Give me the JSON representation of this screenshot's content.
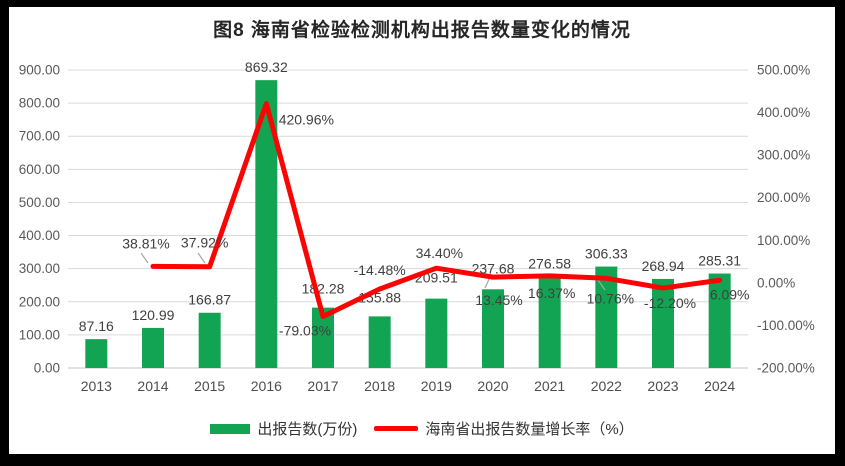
{
  "title": "图8 海南省检验检测机构出报告数量变化的情况",
  "legend": [
    {
      "type": "bar",
      "label": "出报告数(万份)",
      "color": "#12A452"
    },
    {
      "type": "line",
      "label": "海南省出报告数量增长率（%）",
      "color": "#FB0404"
    }
  ],
  "colors": {
    "bar": "#12A452",
    "line": "#FB0404",
    "grid": "#D9D9D9",
    "axis_line": "#C6C6C6",
    "tick_text": "#595959",
    "label_text": "#404040",
    "leader": "#A6A6A6"
  },
  "chart_data": {
    "type": "combo-bar-line",
    "title": "图8 海南省检验检测机构出报告数量变化的情况",
    "categories": [
      "2013",
      "2014",
      "2015",
      "2016",
      "2017",
      "2018",
      "2019",
      "2020",
      "2021",
      "2022",
      "2023",
      "2024"
    ],
    "series": [
      {
        "name": "出报告数(万份)",
        "type": "bar",
        "axis": "left",
        "color": "#12A452",
        "values": [
          87.16,
          120.99,
          166.87,
          869.32,
          182.28,
          155.88,
          209.51,
          237.68,
          276.58,
          306.33,
          268.94,
          285.31
        ],
        "labels": [
          "87.16",
          "120.99",
          "166.87",
          "869.32",
          "182.28",
          "155.88",
          "209.51",
          "237.68",
          "276.58",
          "306.33",
          "268.94",
          "285.31"
        ]
      },
      {
        "name": "海南省出报告数量增长率（%）",
        "type": "line",
        "axis": "right",
        "color": "#FB0404",
        "values": [
          null,
          38.81,
          37.92,
          420.96,
          -79.03,
          -14.48,
          34.4,
          13.45,
          16.37,
          10.76,
          -12.2,
          6.09
        ],
        "labels": [
          "",
          "38.81%",
          "37.92%",
          "420.96%",
          "-79.03%",
          "-14.48%",
          "34.40%",
          "13.45%",
          "16.37%",
          "10.76%",
          "-12.20%",
          "6.09%"
        ]
      }
    ],
    "left_axis": {
      "min": 0,
      "max": 900,
      "step": 100,
      "tick_labels": [
        "0.00",
        "100.00",
        "200.00",
        "300.00",
        "400.00",
        "500.00",
        "600.00",
        "700.00",
        "800.00",
        "900.00"
      ]
    },
    "right_axis": {
      "min": -200,
      "max": 500,
      "step": 100,
      "tick_labels": [
        "-200.00%",
        "-100.00%",
        "0.00%",
        "100.00%",
        "200.00%",
        "300.00%",
        "400.00%",
        "500.00%"
      ]
    },
    "grid": true,
    "legend_position": "bottom"
  }
}
